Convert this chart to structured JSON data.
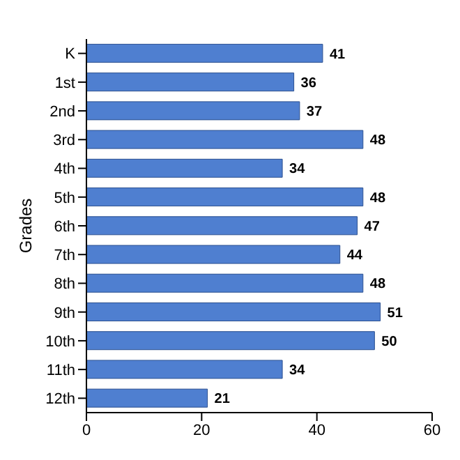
{
  "chart_data": {
    "type": "bar",
    "orientation": "horizontal",
    "ylabel": "Grades",
    "categories": [
      "K",
      "1st",
      "2nd",
      "3rd",
      "4th",
      "5th",
      "6th",
      "7th",
      "8th",
      "9th",
      "10th",
      "11th",
      "12th"
    ],
    "values": [
      41,
      36,
      37,
      48,
      34,
      48,
      47,
      44,
      48,
      51,
      50,
      34,
      21
    ],
    "color": "#4f7fd0",
    "xlim": [
      0,
      60
    ],
    "xticks": [
      0,
      20,
      40,
      60
    ],
    "grid": false,
    "legend": false,
    "data_labels": true
  }
}
